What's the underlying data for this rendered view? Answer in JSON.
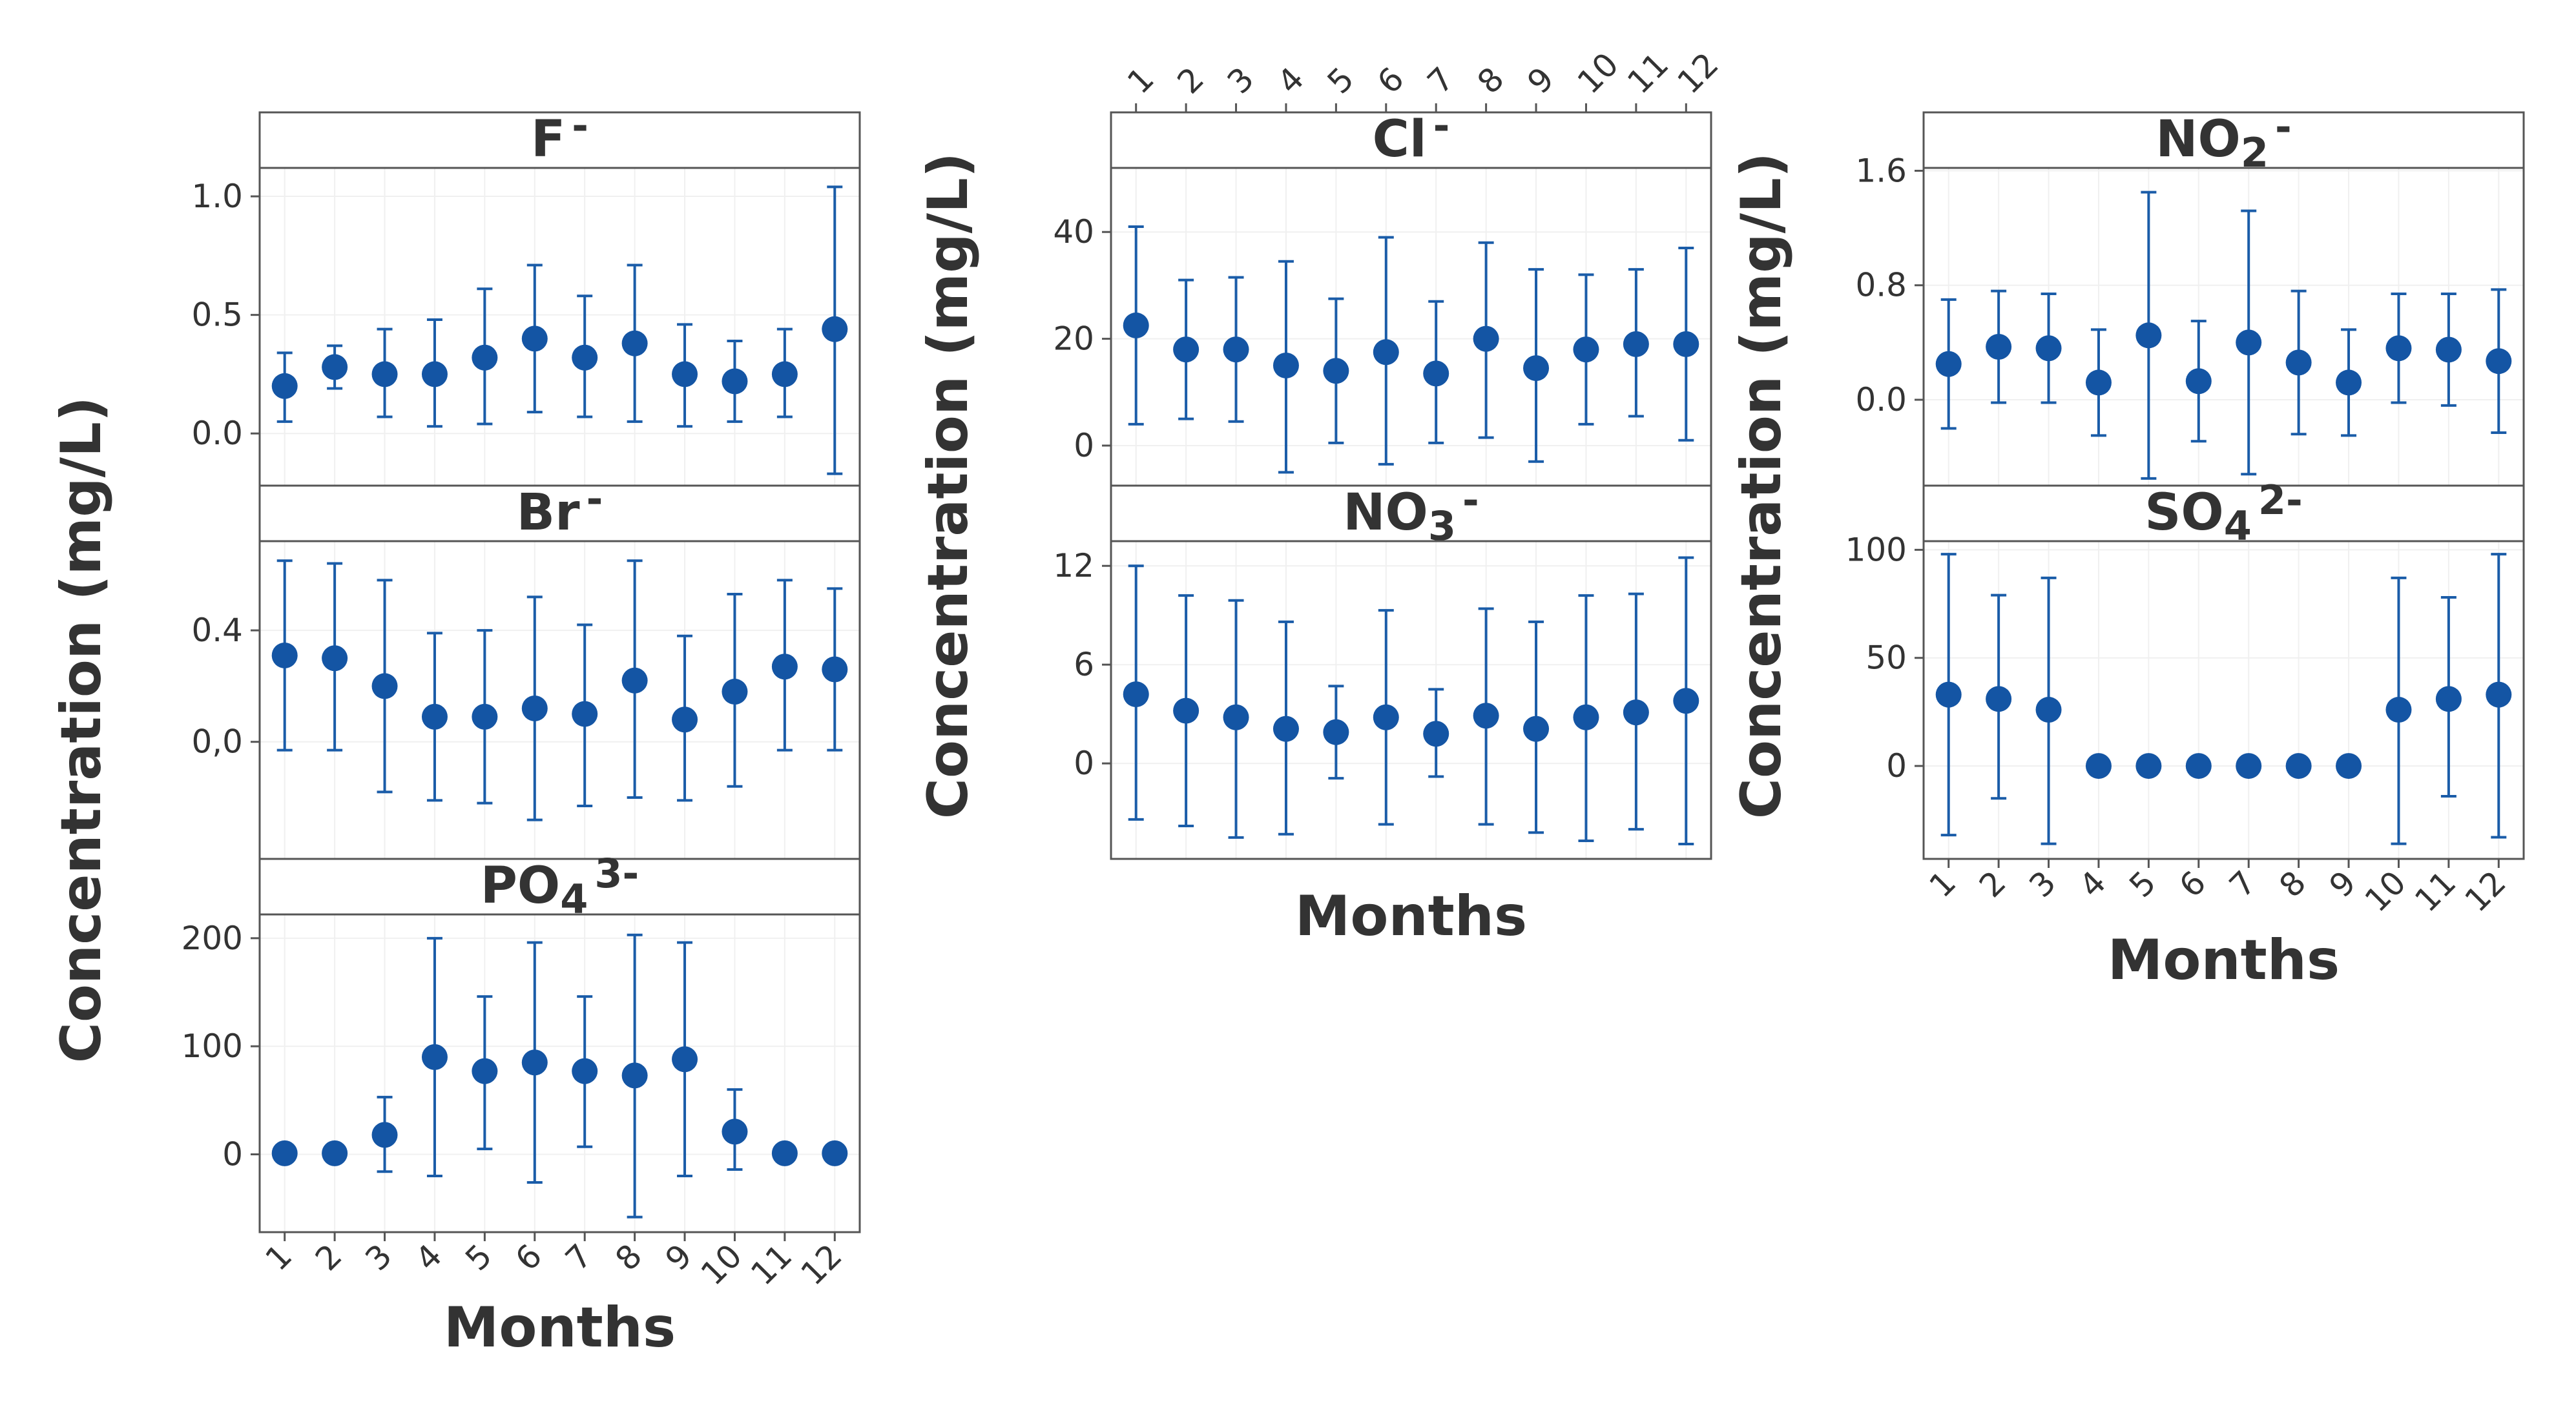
{
  "chart_data": {
    "type": "scatter",
    "subtype": "interval-plot",
    "x_categories": [
      "1",
      "2",
      "3",
      "4",
      "5",
      "6",
      "7",
      "8",
      "9",
      "10",
      "11",
      "12"
    ],
    "x_label": "Months",
    "y_label": "Concentration (mg/L)",
    "marker_color": "#1455a4",
    "error_color": "#1a5ca8",
    "panels": [
      {
        "id": "F",
        "title_base": "F",
        "title_sub": "",
        "title_sup": "-",
        "ylim": [
          -0.22,
          1.12
        ],
        "yticks": [
          0,
          0.5,
          1
        ],
        "ytick_labels": [
          "0.0",
          "0.5",
          "1.0"
        ],
        "mean": [
          0.2,
          0.28,
          0.25,
          0.25,
          0.32,
          0.4,
          0.32,
          0.38,
          0.25,
          0.22,
          0.25,
          0.44
        ],
        "lower": [
          0.05,
          0.19,
          0.07,
          0.03,
          0.04,
          0.09,
          0.07,
          0.05,
          0.03,
          0.05,
          0.07,
          -0.17
        ],
        "upper": [
          0.34,
          0.37,
          0.44,
          0.48,
          0.61,
          0.71,
          0.58,
          0.71,
          0.46,
          0.39,
          0.44,
          1.04
        ]
      },
      {
        "id": "Br",
        "title_base": "Br",
        "title_sub": "",
        "title_sup": "-",
        "ylim": [
          -0.42,
          0.72
        ],
        "yticks": [
          0,
          0.4
        ],
        "ytick_labels": [
          "0,0",
          "0.4"
        ],
        "mean": [
          0.31,
          0.3,
          0.2,
          0.09,
          0.09,
          0.12,
          0.1,
          0.22,
          0.08,
          0.18,
          0.27,
          0.26
        ],
        "lower": [
          -0.03,
          -0.03,
          -0.18,
          -0.21,
          -0.22,
          -0.28,
          -0.23,
          -0.2,
          -0.21,
          -0.16,
          -0.03,
          -0.03
        ],
        "upper": [
          0.65,
          0.64,
          0.58,
          0.39,
          0.4,
          0.52,
          0.42,
          0.65,
          0.38,
          0.53,
          0.58,
          0.55
        ]
      },
      {
        "id": "PO4",
        "title_base": "PO",
        "title_sub": "4",
        "title_sup": "3-",
        "ylim": [
          -72,
          222
        ],
        "yticks": [
          0,
          100,
          200
        ],
        "ytick_labels": [
          "0",
          "100",
          "200"
        ],
        "mean": [
          1,
          1,
          18,
          90,
          77,
          85,
          77,
          73,
          88,
          21,
          1,
          1
        ],
        "lower": [
          1,
          1,
          -16,
          -20,
          5,
          -26,
          7,
          -58,
          -20,
          -14,
          1,
          1
        ],
        "upper": [
          1,
          1,
          53,
          200,
          146,
          196,
          146,
          203,
          196,
          60,
          1,
          1
        ]
      },
      {
        "id": "Cl",
        "title_base": "Cl",
        "title_sub": "",
        "title_sup": "-",
        "ylim": [
          -7.5,
          52
        ],
        "yticks": [
          0,
          20,
          40
        ],
        "ytick_labels": [
          "0",
          "20",
          "40"
        ],
        "mean": [
          22.5,
          18,
          18,
          15,
          14,
          17.5,
          13.5,
          20,
          14.5,
          18,
          19,
          19
        ],
        "lower": [
          4,
          5,
          4.5,
          -5,
          0.5,
          -3.5,
          0.5,
          1.5,
          -3,
          4,
          5.5,
          1
        ],
        "upper": [
          41,
          31,
          31.5,
          34.5,
          27.5,
          39,
          27,
          38,
          33,
          32,
          33,
          37
        ]
      },
      {
        "id": "NO3",
        "title_base": "NO",
        "title_sub": "3",
        "title_sup": "-",
        "ylim": [
          -5.8,
          13.5
        ],
        "yticks": [
          0,
          6,
          12
        ],
        "ytick_labels": [
          "0",
          "6",
          "12"
        ],
        "mean": [
          4.2,
          3.2,
          2.8,
          2.1,
          1.9,
          2.8,
          1.8,
          2.9,
          2.1,
          2.8,
          3.1,
          3.8
        ],
        "lower": [
          -3.4,
          -3.8,
          -4.5,
          -4.3,
          -0.9,
          -3.7,
          -0.8,
          -3.7,
          -4.2,
          -4.7,
          -4.0,
          -4.9
        ],
        "upper": [
          12,
          10.2,
          9.9,
          8.6,
          4.7,
          9.3,
          4.5,
          9.4,
          8.6,
          10.2,
          10.3,
          12.5
        ]
      },
      {
        "id": "NO2",
        "title_base": "NO",
        "title_sub": "2",
        "title_sup": "-",
        "ylim": [
          -0.6,
          1.62
        ],
        "yticks": [
          0,
          0.8,
          1.6
        ],
        "ytick_labels": [
          "0.0",
          "0.8",
          "1.6"
        ],
        "mean": [
          0.25,
          0.37,
          0.36,
          0.12,
          0.45,
          0.13,
          0.4,
          0.26,
          0.12,
          0.36,
          0.35,
          0.27
        ],
        "lower": [
          -0.2,
          -0.02,
          -0.02,
          -0.25,
          -0.55,
          -0.29,
          -0.52,
          -0.24,
          -0.25,
          -0.02,
          -0.04,
          -0.23
        ],
        "upper": [
          0.7,
          0.76,
          0.74,
          0.49,
          1.45,
          0.55,
          1.32,
          0.76,
          0.49,
          0.74,
          0.74,
          0.77
        ]
      },
      {
        "id": "SO4",
        "title_base": "SO",
        "title_sub": "4",
        "title_sup": "2-",
        "ylim": [
          -43,
          104
        ],
        "yticks": [
          0,
          50,
          100
        ],
        "ytick_labels": [
          "0",
          "50",
          "100"
        ],
        "mean": [
          33,
          31,
          26,
          0,
          0,
          0,
          0,
          0,
          0,
          26,
          31,
          33
        ],
        "lower": [
          -32,
          -15,
          -36,
          0,
          0,
          0,
          0,
          0,
          0,
          -36,
          -14,
          -33
        ],
        "upper": [
          98,
          79,
          87,
          0,
          0,
          0,
          0,
          0,
          0,
          87,
          78,
          98
        ]
      }
    ]
  }
}
